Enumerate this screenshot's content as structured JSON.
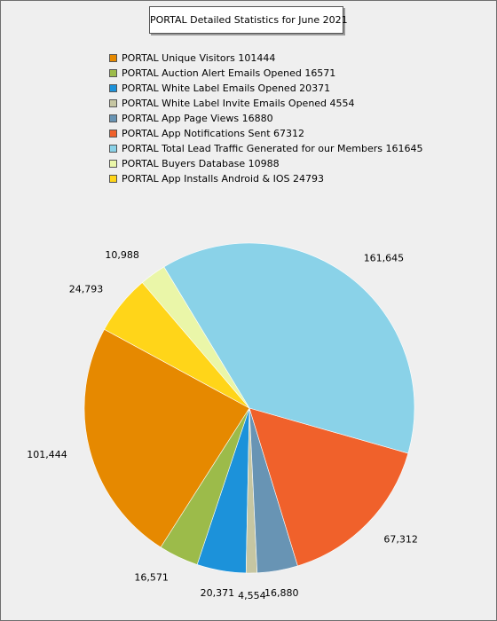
{
  "chart_data": {
    "type": "pie",
    "title": "PORTAL Detailed Statistics for June 2021",
    "legend_position": "top",
    "slices": [
      {
        "legend": "PORTAL Unique Visitors 101444",
        "value": 101444,
        "label": "101,444",
        "color": "#e68900"
      },
      {
        "legend": "PORTAL Auction Alert Emails Opened 16571",
        "value": 16571,
        "label": "16,571",
        "color": "#9cbb4a"
      },
      {
        "legend": "PORTAL White Label Emails Opened 20371",
        "value": 20371,
        "label": "20,371",
        "color": "#1c92da"
      },
      {
        "legend": "PORTAL White Label Invite Emails Opened 4554",
        "value": 4554,
        "label": "4,554",
        "color": "#c6c6a2"
      },
      {
        "legend": "PORTAL App Page Views 16880",
        "value": 16880,
        "label": "16,880",
        "color": "#6894b4"
      },
      {
        "legend": "PORTAL App Notifications Sent 67312",
        "value": 67312,
        "label": "67,312",
        "color": "#f0612b"
      },
      {
        "legend": "PORTAL Total Lead Traffic Generated for our Members 161645",
        "value": 161645,
        "label": "161,645",
        "color": "#8ad2e8"
      },
      {
        "legend": "PORTAL Buyers Database 10988",
        "value": 10988,
        "label": "10,988",
        "color": "#eaf6a8"
      },
      {
        "legend": "PORTAL App Installs Android & IOS 24793",
        "value": 24793,
        "label": "24,793",
        "color": "#ffd519"
      }
    ]
  }
}
